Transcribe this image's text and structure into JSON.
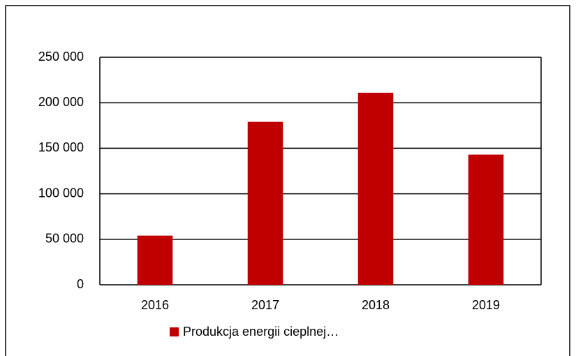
{
  "chart_data": {
    "type": "bar",
    "categories": [
      "2016",
      "2017",
      "2018",
      "2019"
    ],
    "series": [
      {
        "name": "Produkcja energii cieplnej…",
        "color": "#c00000",
        "values": [
          54000,
          179000,
          211000,
          143000
        ]
      }
    ],
    "ylim": [
      0,
      250000
    ],
    "yticks": [
      0,
      {
        "value": 50000,
        "label": "50 000"
      },
      {
        "value": 100000,
        "label": "100 000"
      },
      {
        "value": 150000,
        "label": "150 000"
      },
      {
        "value": 200000,
        "label": "200 000"
      },
      {
        "value": 250000,
        "label": "250 000"
      }
    ],
    "grid": true,
    "legend": "bottom"
  }
}
